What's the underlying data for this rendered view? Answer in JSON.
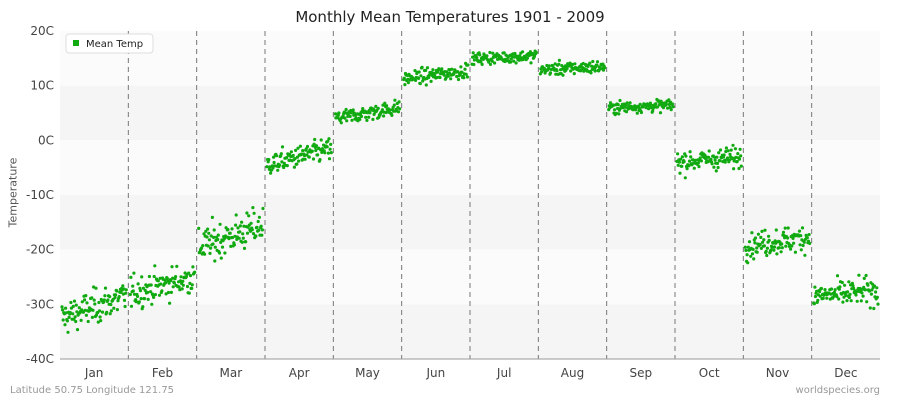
{
  "chart_data": {
    "type": "scatter",
    "title": "Monthly Mean Temperatures 1901 - 2009",
    "xlabel": "",
    "ylabel": "Temperature",
    "categories": [
      "Jan",
      "Feb",
      "Mar",
      "Apr",
      "May",
      "Jun",
      "Jul",
      "Aug",
      "Sep",
      "Oct",
      "Nov",
      "Dec"
    ],
    "yticks": [
      "-40C",
      "-30C",
      "-20C",
      "-10C",
      "0C",
      "10C",
      "20C"
    ],
    "ytick_values": [
      -40,
      -30,
      -20,
      -10,
      0,
      10,
      20
    ],
    "ylim": [
      -40,
      20
    ],
    "grid": "alternating horizontal bands, dashed vertical month separators",
    "legend": {
      "position": "top-left",
      "entries": [
        "Mean Temp"
      ]
    },
    "series": [
      {
        "name": "Mean Temp",
        "color": "#11aa11",
        "years": [
          1901,
          2009
        ],
        "monthly_summary": [
          {
            "month": "Jan",
            "mean": -30.5,
            "min": -38,
            "max": -25,
            "trend": 4
          },
          {
            "month": "Feb",
            "mean": -26.5,
            "min": -33,
            "max": -21,
            "trend": 3
          },
          {
            "month": "Mar",
            "mean": -17.5,
            "min": -23,
            "max": -9,
            "trend": 4
          },
          {
            "month": "Apr",
            "mean": -3,
            "min": -7,
            "max": 1.5,
            "trend": 3
          },
          {
            "month": "May",
            "mean": 5,
            "min": 2,
            "max": 8,
            "trend": 2
          },
          {
            "month": "Jun",
            "mean": 12,
            "min": 9,
            "max": 14.5,
            "trend": 1.5
          },
          {
            "month": "Jul",
            "mean": 15.2,
            "min": 13,
            "max": 17.5,
            "trend": 0.5
          },
          {
            "month": "Aug",
            "mean": 13.2,
            "min": 10.5,
            "max": 15.5,
            "trend": 0.5
          },
          {
            "month": "Sep",
            "mean": 6.2,
            "min": 4,
            "max": 8.5,
            "trend": 0.5
          },
          {
            "month": "Oct",
            "mean": -3.5,
            "min": -8.5,
            "max": -0.5,
            "trend": 1
          },
          {
            "month": "Nov",
            "mean": -18.5,
            "min": -23,
            "max": -13,
            "trend": 1.5
          },
          {
            "month": "Dec",
            "mean": -28,
            "min": -33,
            "max": -23,
            "trend": 1
          }
        ]
      }
    ]
  },
  "footer": {
    "location": "Latitude 50.75 Longitude 121.75",
    "source": "worldspecies.org"
  }
}
